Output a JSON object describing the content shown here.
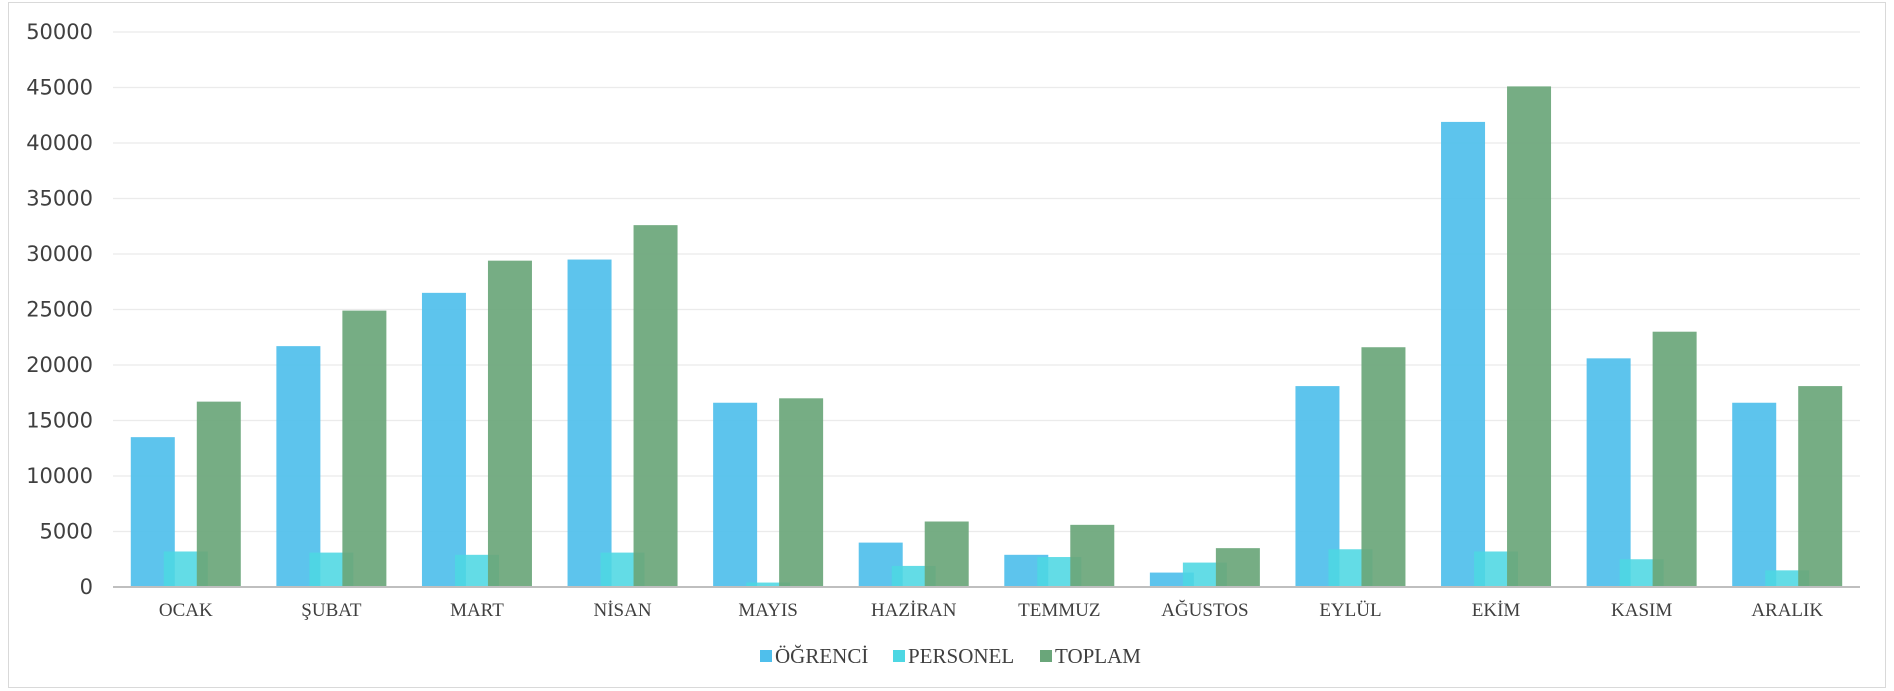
{
  "chart_data": {
    "type": "bar",
    "categories": [
      "OCAK",
      "ŞUBAT",
      "MART",
      "NİSAN",
      "MAYIS",
      "HAZİRAN",
      "TEMMUZ",
      "AĞUSTOS",
      "EYLÜL",
      "EKİM",
      "KASIM",
      "ARALIK"
    ],
    "series": [
      {
        "name": "ÖĞRENCİ",
        "color": "#4fbfec",
        "values": [
          13500,
          21700,
          26500,
          29500,
          16600,
          4000,
          2900,
          1300,
          18100,
          41900,
          20600,
          16600
        ]
      },
      {
        "name": "PERSONEL",
        "color": "#4dd7e3",
        "values": [
          3200,
          3100,
          2900,
          3100,
          400,
          1900,
          2700,
          2200,
          3400,
          3200,
          2500,
          1500
        ]
      },
      {
        "name": "TOPLAM",
        "color": "#6aa67a",
        "values": [
          16700,
          24900,
          29400,
          32600,
          17000,
          5900,
          5600,
          3500,
          21600,
          45100,
          23000,
          18100
        ]
      }
    ],
    "ylim": [
      0,
      50000
    ],
    "yticks": [
      "0",
      "5000",
      "10000",
      "15000",
      "20000",
      "25000",
      "30000",
      "35000",
      "40000",
      "45000",
      "50000"
    ],
    "grid": true,
    "legend": "bottom",
    "title": "",
    "xlabel": "",
    "ylabel": ""
  }
}
